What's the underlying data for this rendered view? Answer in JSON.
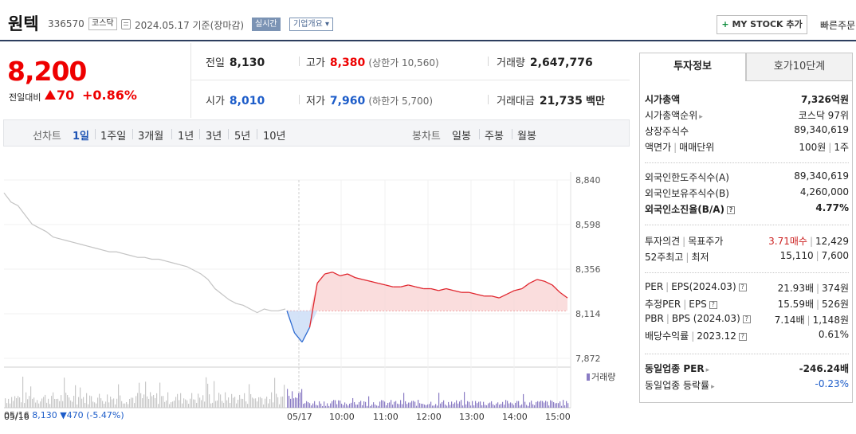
{
  "header": {
    "name": "원텍",
    "code": "336570",
    "market": "코스닥",
    "date": "2024.05.17 기준(장마감)",
    "realtime": "실시간",
    "company": "기업개요",
    "mystock": "MY STOCK 추가",
    "quick": "빠른주문"
  },
  "price": {
    "current": "8,200",
    "change_label": "전일대비",
    "change": "70",
    "percent": "+0.86%"
  },
  "stats": {
    "prev_label": "전일",
    "prev": "8,130",
    "high_label": "고가",
    "high": "8,380",
    "upper_limit": "(상한가 10,560)",
    "volume_label": "거래량",
    "volume": "2,647,776",
    "open_label": "시가",
    "open": "8,010",
    "low_label": "저가",
    "low": "7,960",
    "lower_limit": "(하한가 5,700)",
    "value_label": "거래대금",
    "value": "21,735",
    "value_unit": "백만"
  },
  "period_tabs": {
    "line_label": "선차트",
    "line": [
      "1일",
      "1주일",
      "3개월",
      "1년",
      "3년",
      "5년",
      "10년"
    ],
    "candle_label": "봉차트",
    "candle": [
      "일봉",
      "주봉",
      "월봉"
    ]
  },
  "chart_data": {
    "type": "line",
    "y_ticks": [
      "8,840",
      "8,598",
      "8,356",
      "8,114",
      "7,872"
    ],
    "y_tick_values": [
      8840,
      8598,
      8356,
      8114,
      7872
    ],
    "x_ticks": [
      "05/17",
      "10:00",
      "11:00",
      "12:00",
      "13:00",
      "14:00",
      "15:00"
    ],
    "x_tick_left": "05/16",
    "baseline": 8130,
    "volume_label": "거래량",
    "prev_day_series": {
      "name": "05/16",
      "values": [
        8770,
        8720,
        8700,
        8650,
        8600,
        8580,
        8560,
        8530,
        8520,
        8510,
        8500,
        8490,
        8480,
        8470,
        8460,
        8450,
        8450,
        8440,
        8430,
        8420,
        8420,
        8410,
        8410,
        8400,
        8390,
        8380,
        8370,
        8350,
        8330,
        8300,
        8250,
        8220,
        8190,
        8170,
        8160,
        8140,
        8120,
        8140,
        8130,
        8130,
        8140
      ]
    },
    "today_series": {
      "name": "05/17",
      "values": [
        8130,
        8010,
        7960,
        8040,
        8280,
        8330,
        8340,
        8320,
        8330,
        8310,
        8300,
        8290,
        8280,
        8270,
        8260,
        8260,
        8270,
        8260,
        8250,
        8250,
        8240,
        8250,
        8240,
        8230,
        8230,
        8220,
        8210,
        8210,
        8200,
        8220,
        8240,
        8250,
        8280,
        8300,
        8290,
        8270,
        8230,
        8200
      ],
      "open_time_range": [
        "09:00",
        "15:30"
      ]
    },
    "footer": {
      "date": "05/16",
      "price": "8,130",
      "change": "▼470",
      "percent": "(-5.47%)"
    }
  },
  "panel": {
    "tab_active": "투자정보",
    "tab_other": "호가10단계",
    "rows": {
      "mcap_label": "시가총액",
      "mcap": "7,326억원",
      "mcap_rank_label": "시가총액순위",
      "mcap_rank": "코스닥 97위",
      "shares_label": "상장주식수",
      "shares": "89,340,619",
      "par_label": "액면가",
      "trade_unit_label": "매매단위",
      "par": "100원",
      "trade_unit": "1주",
      "foreign_limit_label": "외국인한도주식수(A)",
      "foreign_limit": "89,340,619",
      "foreign_hold_label": "외국인보유주식수(B)",
      "foreign_hold": "4,260,000",
      "foreign_ratio_label": "외국인소진율(B/A)",
      "foreign_ratio": "4.77%",
      "opinion_label": "투자의견",
      "target_label": "목표주가",
      "opinion": "3.71매수",
      "target": "12,429",
      "high52_label": "52주최고",
      "low52_label": "최저",
      "high52": "15,110",
      "low52": "7,600",
      "per_label": "PER",
      "eps_label": "EPS(2024.03)",
      "per": "21.93배",
      "eps": "374원",
      "eper_label": "추정PER",
      "eeps_label": "EPS",
      "eper": "15.59배",
      "eeps": "526원",
      "pbr_label": "PBR",
      "bps_label": "BPS (2024.03)",
      "pbr": "7.14배",
      "bps": "1,148원",
      "div_label": "배당수익률",
      "div_date": "2023.12",
      "div": "0.61%",
      "sector_per_label": "동일업종 PER",
      "sector_per": "-246.24배",
      "sector_chg_label": "동일업종 등락률",
      "sector_chg": "-0.23%"
    }
  }
}
